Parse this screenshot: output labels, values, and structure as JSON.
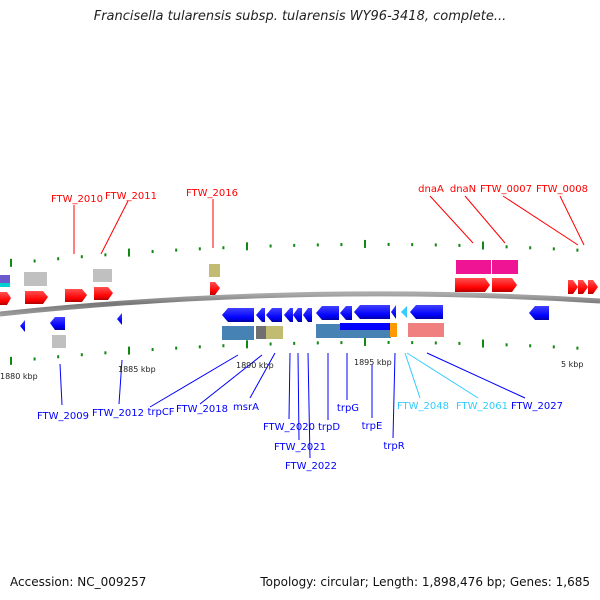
{
  "title": "Francisella tularensis subsp. tularensis WY96-3418, complete...",
  "footer": {
    "accession": "Accession: NC_009257",
    "summary": "Topology: circular; Length: 1,898,476 bp; Genes: 1,685"
  },
  "scale_labels": [
    "1880 kbp",
    "1885 kbp",
    "1890 kbp",
    "1895 kbp",
    "5 kbp"
  ],
  "top_genes": [
    "FTW_2010",
    "FTW_2011",
    "FTW_2016",
    "dnaA",
    "dnaN",
    "FTW_0007",
    "FTW_0008"
  ],
  "bottom_genes": [
    "FTW_2009",
    "FTW_2012",
    "trpCF",
    "FTW_2018",
    "msrA",
    "FTW_2020",
    "FTW_2021",
    "FTW_2022",
    "trpD",
    "trpG",
    "trpE",
    "trpR",
    "FTW_2048",
    "FTW_2061",
    "FTW_2027"
  ],
  "colors": {
    "forward": "#ff0000",
    "reverse": "#0000ff",
    "highlight": "#33ccff",
    "backbone": "#888888",
    "tick": "#118811"
  }
}
